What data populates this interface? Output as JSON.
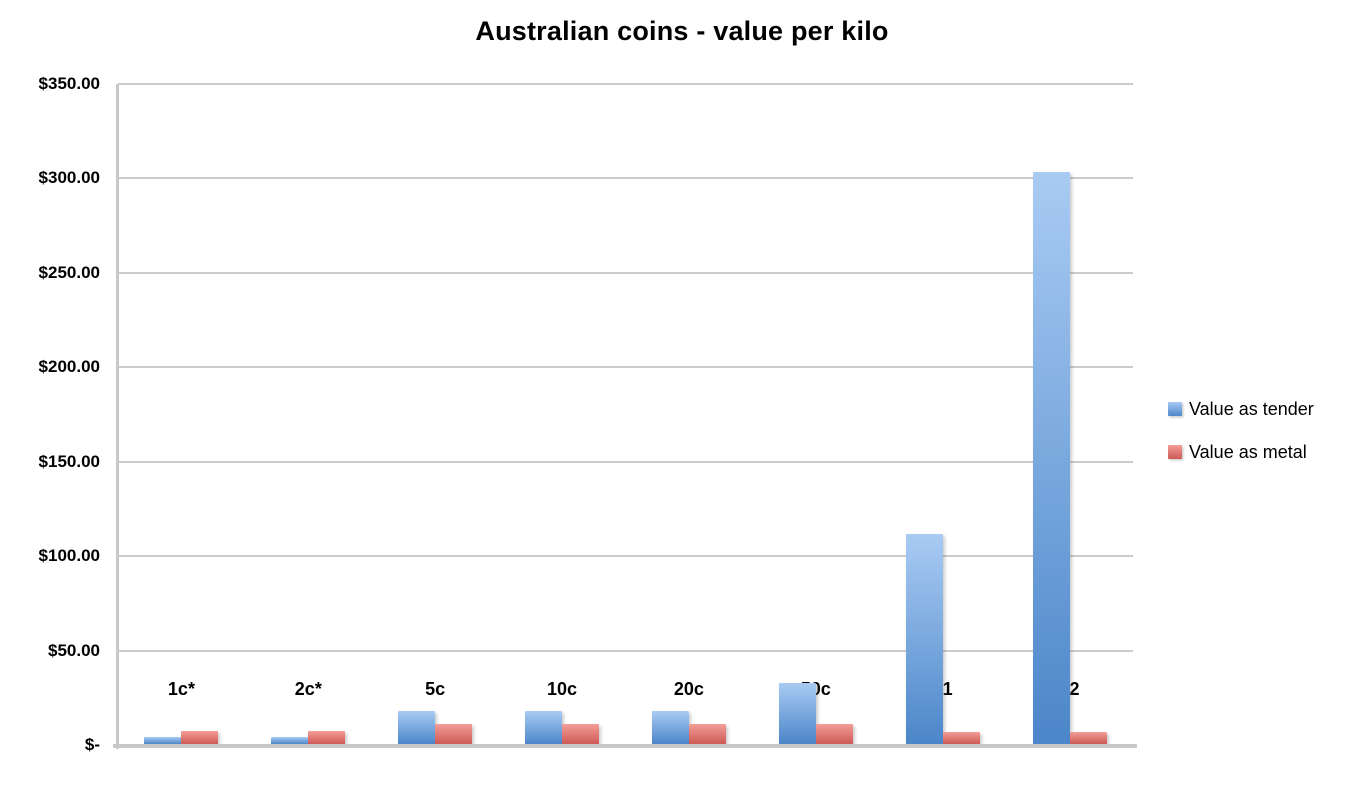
{
  "chart_data": {
    "type": "bar",
    "title": "Australian coins - value per kilo",
    "xlabel": "",
    "ylabel": "",
    "categories": [
      "1c*",
      "2c*",
      "5c",
      "10c",
      "20c",
      "50c",
      "$1",
      "$2"
    ],
    "series": [
      {
        "name": "Value as tender",
        "values": [
          3.8,
          3.8,
          17.7,
          17.7,
          17.7,
          32.2,
          111,
          303
        ],
        "color_top": "#a9cbf3",
        "color_bottom": "#4b86c9"
      },
      {
        "name": "Value as metal",
        "values": [
          7.0,
          7.0,
          10.5,
          10.5,
          10.5,
          10.5,
          6.4,
          6.4
        ],
        "color_top": "#f49d98",
        "color_bottom": "#cd5a55"
      }
    ],
    "ylim": [
      0,
      350
    ],
    "ytick_step": 50,
    "yticks": [
      {
        "value": 350,
        "label": "$350.00"
      },
      {
        "value": 300,
        "label": "$300.00"
      },
      {
        "value": 250,
        "label": "$250.00"
      },
      {
        "value": 200,
        "label": "$200.00"
      },
      {
        "value": 150,
        "label": "$150.00"
      },
      {
        "value": 100,
        "label": "$100.00"
      },
      {
        "value": 50,
        "label": "$50.00"
      },
      {
        "value": 0,
        "label": "$-"
      }
    ],
    "grid": true,
    "legend_position": "right",
    "colors": {
      "gridline": "#cbcbcb",
      "axis_line": "#c8c8c8",
      "text": "#000000",
      "background": "#ffffff"
    }
  }
}
